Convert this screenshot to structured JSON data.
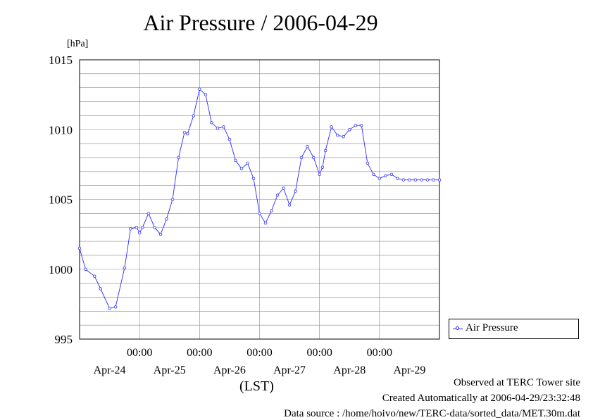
{
  "title": "Air Pressure / 2006-04-29",
  "unit_label": "[hPa]",
  "x_axis_label": "(LST)",
  "legend": {
    "label": "Air Pressure"
  },
  "footer": {
    "line1": "Observed at TERC Tower site",
    "line2": "Created Automatically at 2006-04-29/23:32:48",
    "line3": "Data source : /home/hoivo/new/TERC-data/sorted_data/MET.30m.dat"
  },
  "colors": {
    "series": "#2a2aff",
    "grid": "#888888",
    "axis": "#000000"
  },
  "chart_data": {
    "type": "line",
    "title": "Air Pressure / 2006-04-29",
    "ylabel": "[hPa]",
    "xlabel": "(LST)",
    "ylim": [
      995,
      1015
    ],
    "y_ticks": [
      "995",
      "1000",
      "1005",
      "1010",
      "1015"
    ],
    "xlim": [
      0,
      6
    ],
    "x_tick_time_labels": [
      "00:00",
      "00:00",
      "00:00",
      "00:00",
      "00:00"
    ],
    "x_tick_positions_days": [
      1,
      2,
      3,
      4,
      5
    ],
    "x_day_labels": [
      "Apr-24",
      "Apr-25",
      "Apr-26",
      "Apr-27",
      "Apr-28",
      "Apr-29"
    ],
    "grid": true,
    "legend_position": "right",
    "series": [
      {
        "name": "Air Pressure",
        "x_days": [
          0.0,
          0.1,
          0.25,
          0.35,
          0.5,
          0.6,
          0.75,
          0.85,
          0.95,
          1.0,
          1.05,
          1.15,
          1.25,
          1.35,
          1.45,
          1.55,
          1.65,
          1.75,
          1.8,
          1.9,
          2.0,
          2.1,
          2.2,
          2.3,
          2.4,
          2.5,
          2.6,
          2.7,
          2.8,
          2.9,
          3.0,
          3.1,
          3.2,
          3.3,
          3.4,
          3.5,
          3.6,
          3.7,
          3.8,
          3.9,
          4.0,
          4.05,
          4.1,
          4.2,
          4.3,
          4.4,
          4.5,
          4.6,
          4.7,
          4.8,
          4.9,
          5.0,
          5.1,
          5.2,
          5.3,
          5.4,
          5.5,
          5.6,
          5.7,
          5.8,
          5.9,
          6.0
        ],
        "values": [
          1001.5,
          1000.0,
          999.5,
          998.6,
          997.2,
          997.3,
          1000.1,
          1002.9,
          1003.0,
          1002.6,
          1003.0,
          1004.0,
          1003.0,
          1002.5,
          1003.6,
          1005.0,
          1008.0,
          1009.8,
          1009.7,
          1011.0,
          1012.9,
          1012.5,
          1010.5,
          1010.1,
          1010.2,
          1009.3,
          1007.8,
          1007.2,
          1007.6,
          1006.5,
          1004.0,
          1003.3,
          1004.2,
          1005.3,
          1005.8,
          1004.6,
          1005.6,
          1008.0,
          1008.8,
          1008.0,
          1006.8,
          1007.3,
          1008.5,
          1010.2,
          1009.6,
          1009.5,
          1010.0,
          1010.3,
          1010.3,
          1007.6,
          1006.8,
          1006.5,
          1006.7,
          1006.8,
          1006.5,
          1006.4,
          1006.4,
          1006.4,
          1006.4,
          1006.4,
          1006.4,
          1006.4
        ]
      }
    ]
  }
}
